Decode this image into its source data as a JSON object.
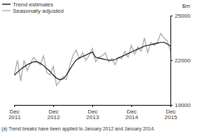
{
  "chart_data": {
    "type": "line",
    "ylabel": "$m",
    "footnote": "(a) Trend breaks have been applied to January 2012 and January 2014.",
    "categories": [
      "Dec 2011",
      null,
      null,
      null,
      null,
      null,
      null,
      null,
      null,
      null,
      null,
      null,
      "Dec 2012",
      null,
      null,
      null,
      null,
      null,
      null,
      null,
      null,
      null,
      null,
      null,
      "Dec 2013",
      null,
      null,
      null,
      null,
      null,
      null,
      null,
      null,
      null,
      null,
      null,
      "Dec 2014",
      null,
      null,
      null,
      null,
      null,
      null,
      null,
      null,
      null,
      null,
      null,
      "Dec 2015"
    ],
    "series": [
      {
        "name": "Seasonally adjusted",
        "color": "#aaaaaa",
        "values": [
          21000,
          22000,
          20600,
          22000,
          21300,
          21800,
          22200,
          21900,
          21700,
          22300,
          21200,
          21000,
          21600,
          20300,
          20600,
          20900,
          20700,
          21600,
          22300,
          22700,
          22100,
          22500,
          22000,
          22300,
          22800,
          21900,
          22200,
          22300,
          22500,
          21900,
          22100,
          21700,
          22200,
          22100,
          22600,
          22200,
          23000,
          22400,
          22900,
          22600,
          23500,
          22500,
          23200,
          23000,
          23200,
          23800,
          23500,
          23300,
          22600
        ]
      },
      {
        "name": "Trend estimates",
        "color": "#000000",
        "values": [
          21000,
          21200,
          21400,
          21550,
          21700,
          21800,
          21900,
          21900,
          21800,
          21650,
          21450,
          21250,
          21000,
          20800,
          20700,
          20750,
          21000,
          21350,
          21700,
          22000,
          22150,
          22250,
          22350,
          22450,
          22550,
          22200,
          22150,
          22100,
          22050,
          22000,
          22000,
          22050,
          22150,
          22250,
          22350,
          22450,
          22550,
          22650,
          22750,
          22850,
          22950,
          23000,
          23050,
          23100,
          23150,
          23200,
          23200,
          23100,
          22950
        ]
      }
    ],
    "ylim": [
      19000,
      25000
    ],
    "yticks": [
      19000,
      22000,
      25000
    ]
  }
}
